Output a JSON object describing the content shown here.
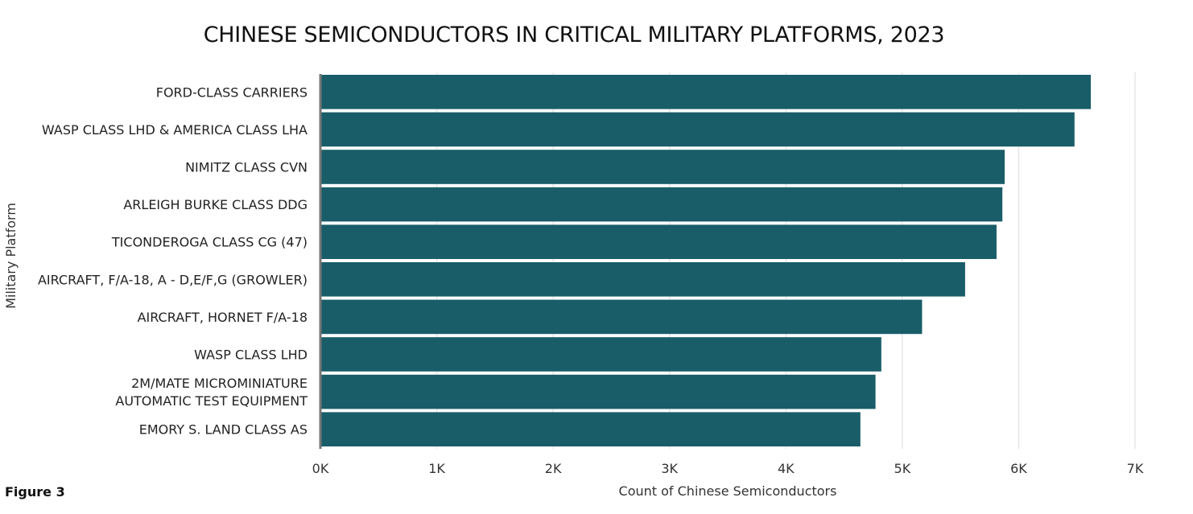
{
  "chart_data": {
    "type": "bar",
    "orientation": "horizontal",
    "title": "CHINESE SEMICONDUCTORS IN CRITICAL MILITARY PLATFORMS, 2023",
    "xlabel": "Count of Chinese Semiconductors",
    "ylabel": "Military Platform",
    "categories": [
      [
        "FORD-CLASS CARRIERS"
      ],
      [
        "WASP CLASS LHD & AMERICA CLASS LHA"
      ],
      [
        "NIMITZ CLASS CVN"
      ],
      [
        "ARLEIGH BURKE CLASS DDG"
      ],
      [
        "TICONDEROGA CLASS CG (47)"
      ],
      [
        "AIRCRAFT, F/A-18, A - D,E/F,G (GROWLER)"
      ],
      [
        "AIRCRAFT, HORNET F/A-18"
      ],
      [
        "WASP CLASS LHD"
      ],
      [
        "2M/MATE MICROMINIATURE",
        "AUTOMATIC TEST EQUIPMENT"
      ],
      [
        "EMORY S. LAND CLASS AS"
      ]
    ],
    "values": [
      6620,
      6480,
      5880,
      5860,
      5810,
      5540,
      5170,
      4820,
      4770,
      4640
    ],
    "xlim": [
      0,
      7000
    ],
    "xticks": [
      0,
      1000,
      2000,
      3000,
      4000,
      5000,
      6000,
      7000
    ],
    "xtick_labels": [
      "0K",
      "1K",
      "2K",
      "3K",
      "4K",
      "5K",
      "6K",
      "7K"
    ],
    "grid": "vertical",
    "bar_color": "#195d68"
  },
  "footer": {
    "figure_label": "Figure 3"
  }
}
